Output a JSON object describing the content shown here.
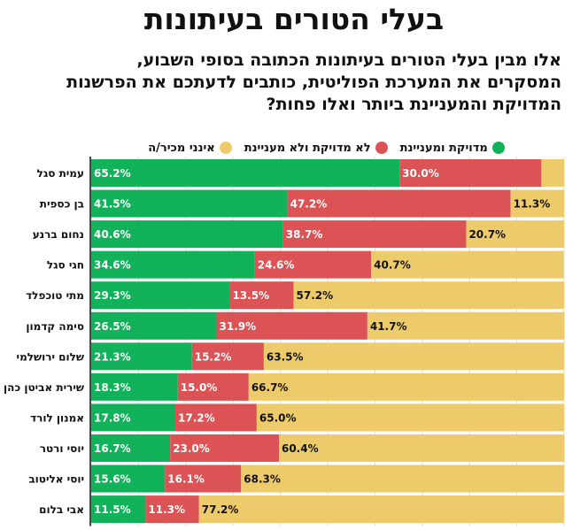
{
  "title": "בעלי הטורים בעיתונות",
  "subtitle_lines": [
    "אלו מבין בעלי הטורים בעיתונות הכתובה בסופי השבוע,",
    "המסקרים את המערכת הפוליטית, כותבים לדעתכם את הפרשנות",
    "המדויקת והמעניינת ביותר ואלו פחות?"
  ],
  "chart_data": {
    "type": "bar",
    "orientation": "horizontal",
    "stacked": true,
    "xlim": [
      0,
      100
    ],
    "grid": true,
    "legend_position": "top",
    "categories": [
      "עמית סגל",
      "בן כספית",
      "נחום ברנע",
      "חגי סגל",
      "מתי טוכפלד",
      "סימה קדמון",
      "שלום ירושלמי",
      "שירית אביטן כהן",
      "אמנון לורד",
      "יוסי ורטר",
      "יוסי אליטוב",
      "אבי בלום"
    ],
    "series": [
      {
        "name": "מדויקת ומעניינת",
        "color": "#12b25a",
        "values": [
          65.2,
          41.5,
          40.6,
          34.6,
          29.3,
          26.5,
          21.3,
          18.3,
          17.8,
          16.7,
          15.6,
          11.5
        ],
        "labels": [
          "65.2%",
          "41.5%",
          "40.6%",
          "34.6%",
          "29.3%",
          "26.5%",
          "21.3%",
          "18.3%",
          "17.8%",
          "16.7%",
          "15.6%",
          "11.5%"
        ]
      },
      {
        "name": "לא מדויקת ולא מעניינת",
        "color": "#dc5356",
        "values": [
          30.0,
          47.2,
          38.7,
          24.6,
          13.5,
          31.9,
          15.2,
          15.0,
          17.2,
          23.0,
          16.1,
          11.3
        ],
        "labels": [
          "30.0%",
          "47.2%",
          "38.7%",
          "24.6%",
          "13.5%",
          "31.9%",
          "15.2%",
          "15.0%",
          "17.2%",
          "23.0%",
          "16.1%",
          "11.3%"
        ]
      },
      {
        "name": "אינני מכיר/ה",
        "color": "#eecb6a",
        "values": [
          4.8,
          11.3,
          20.7,
          40.7,
          57.2,
          41.7,
          63.5,
          66.7,
          65.0,
          60.4,
          68.3,
          77.2
        ],
        "labels": [
          "",
          "11.3%",
          "20.7%",
          "40.7%",
          "57.2%",
          "41.7%",
          "63.5%",
          "66.7%",
          "65.0%",
          "60.4%",
          "68.3%",
          "77.2%"
        ]
      }
    ]
  }
}
